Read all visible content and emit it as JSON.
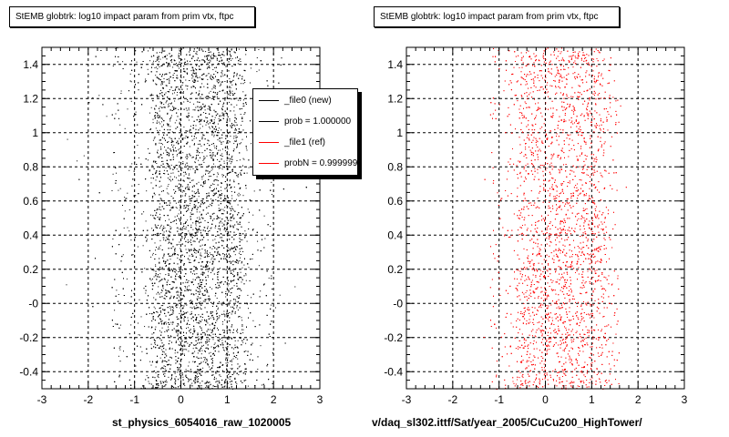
{
  "chart_data": [
    {
      "type": "scatter",
      "title": "StEMB globtrk: log10 impact param from prim vtx, ftpc",
      "xlabel": "st_physics_6054016_raw_1020005",
      "ylabel": "",
      "xlim": [
        -3,
        3
      ],
      "ylim": [
        -0.5,
        1.5
      ],
      "x_ticks": [
        "-3",
        "-2",
        "-1",
        "0",
        "1",
        "2",
        "3"
      ],
      "y_ticks": [
        "-0.4",
        "-0.2",
        "-0",
        "0.2",
        "0.4",
        "0.6",
        "0.8",
        "1",
        "1.2",
        "1.4"
      ],
      "grid": true,
      "series": [
        {
          "color": "#000000",
          "x_core": [
            -0.6,
            1.3
          ],
          "x_wide": [
            -1.5,
            2.0
          ],
          "x_sparse": [
            -2.5,
            2.8
          ],
          "points": 9000
        }
      ],
      "legend": {
        "placement": "top-right",
        "entries": [
          {
            "label": "_file0 (new)",
            "color": "#000000"
          },
          {
            "label": "prob = 1.000000",
            "color": "#000000"
          },
          {
            "label": "_file1 (ref)",
            "color": "#ff0000"
          },
          {
            "label": "probN = 0.999999",
            "color": "#ff0000"
          }
        ]
      }
    },
    {
      "type": "scatter",
      "title": "StEMB globtrk: log10 impact param from prim vtx, ftpc",
      "xlabel": "v/daq_sl302.ittf/Sat/year_2005/CuCu200_HighTower/",
      "ylabel": "",
      "xlim": [
        -3,
        3
      ],
      "ylim": [
        -0.5,
        1.5
      ],
      "x_ticks": [
        "-3",
        "-2",
        "-1",
        "0",
        "1",
        "2",
        "3"
      ],
      "y_ticks": [
        "-0.4",
        "-0.2",
        "-0",
        "0.2",
        "0.4",
        "0.6",
        "0.8",
        "1",
        "1.2",
        "1.4"
      ],
      "grid": true,
      "series": [
        {
          "color": "#ff0000",
          "x_core": [
            -0.6,
            1.3
          ],
          "x_wide": [
            -1.2,
            1.6
          ],
          "x_sparse": [
            -1.5,
            1.8
          ],
          "points": 5500
        }
      ]
    }
  ]
}
